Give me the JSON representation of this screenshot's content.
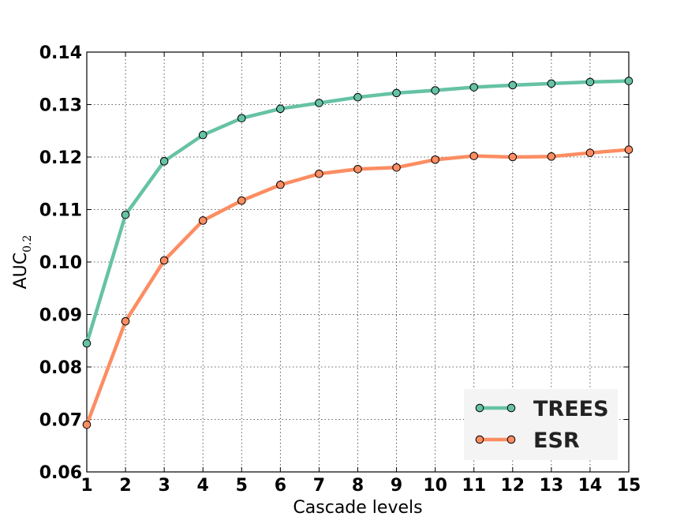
{
  "chart_data": {
    "type": "line",
    "title": "",
    "xlabel": "Cascade levels",
    "ylabel": "AUC",
    "ylabel_subscript": "0.2",
    "xlim": [
      1,
      15
    ],
    "ylim": [
      0.06,
      0.14
    ],
    "xticks": [
      1,
      2,
      3,
      4,
      5,
      6,
      7,
      8,
      9,
      10,
      11,
      12,
      13,
      14,
      15
    ],
    "yticks": [
      "0.06",
      "0.07",
      "0.08",
      "0.09",
      "0.10",
      "0.11",
      "0.12",
      "0.13",
      "0.14"
    ],
    "grid": true,
    "legend_position": "bottom-right",
    "x": [
      1,
      2,
      3,
      4,
      5,
      6,
      7,
      8,
      9,
      10,
      11,
      12,
      13,
      14,
      15
    ],
    "series": [
      {
        "name": "TREES",
        "color": "#66c2a5",
        "values": [
          0.0845,
          0.109,
          0.1192,
          0.1242,
          0.1274,
          0.1292,
          0.1303,
          0.1314,
          0.1322,
          0.1327,
          0.1333,
          0.1337,
          0.134,
          0.1343,
          0.1345
        ]
      },
      {
        "name": "ESR",
        "color": "#fc8d62",
        "values": [
          0.069,
          0.0887,
          0.1003,
          0.1079,
          0.1117,
          0.1147,
          0.1168,
          0.1177,
          0.118,
          0.1195,
          0.1202,
          0.12,
          0.1201,
          0.1208,
          0.1214
        ]
      }
    ]
  }
}
